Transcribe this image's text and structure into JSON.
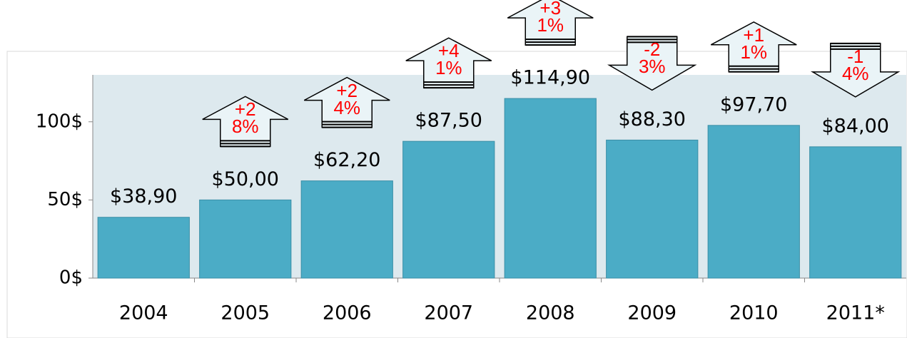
{
  "chart_data": {
    "type": "bar",
    "categories": [
      "2004",
      "2005",
      "2006",
      "2007",
      "2008",
      "2009",
      "2010",
      "2011*"
    ],
    "values": [
      38.9,
      50,
      62.2,
      87.5,
      114.9,
      88.3,
      97.7,
      84
    ],
    "value_labels": [
      "$38,90",
      "$50,00",
      "$62,20",
      "$87,50",
      "$114,90",
      "$88,30",
      "$97,70",
      "$84,00"
    ],
    "annotations": [
      null,
      "+28%",
      "+24%",
      "+41%",
      "+31%",
      "-23%",
      "+11%",
      "-14%"
    ],
    "color": "#4bacc6",
    "ylim": [
      0,
      130
    ],
    "yticks": [
      {
        "value": 0,
        "label": "0$"
      },
      {
        "value": 50,
        "label": "50$"
      },
      {
        "value": 100,
        "label": "100$"
      }
    ],
    "grid": false
  }
}
